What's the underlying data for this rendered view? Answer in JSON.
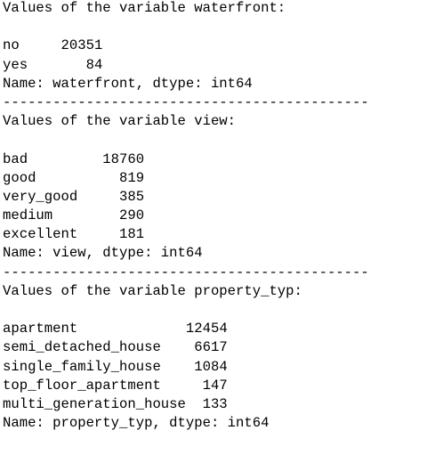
{
  "output": {
    "blocks": [
      {
        "header": "Values of the variable waterfront:",
        "rows": [
          {
            "label": "no",
            "value": "20351"
          },
          {
            "label": "yes",
            "value": "84"
          }
        ],
        "footer": "Name: waterfront, dtype: int64",
        "separator": "--------------------------------------------"
      },
      {
        "header": "Values of the variable view:",
        "rows": [
          {
            "label": "bad",
            "value": "18760"
          },
          {
            "label": "good",
            "value": "819"
          },
          {
            "label": "very_good",
            "value": "385"
          },
          {
            "label": "medium",
            "value": "290"
          },
          {
            "label": "excellent",
            "value": "181"
          }
        ],
        "footer": "Name: view, dtype: int64",
        "separator": "--------------------------------------------"
      },
      {
        "header": "Values of the variable property_typ:",
        "rows": [
          {
            "label": "apartment",
            "value": "12454"
          },
          {
            "label": "semi_detached_house",
            "value": "6617"
          },
          {
            "label": "single_family_house",
            "value": "1084"
          },
          {
            "label": "top_floor_apartment",
            "value": "147"
          },
          {
            "label": "multi_generation_house",
            "value": "133"
          }
        ],
        "footer": "Name: property_typ, dtype: int64"
      }
    ]
  }
}
